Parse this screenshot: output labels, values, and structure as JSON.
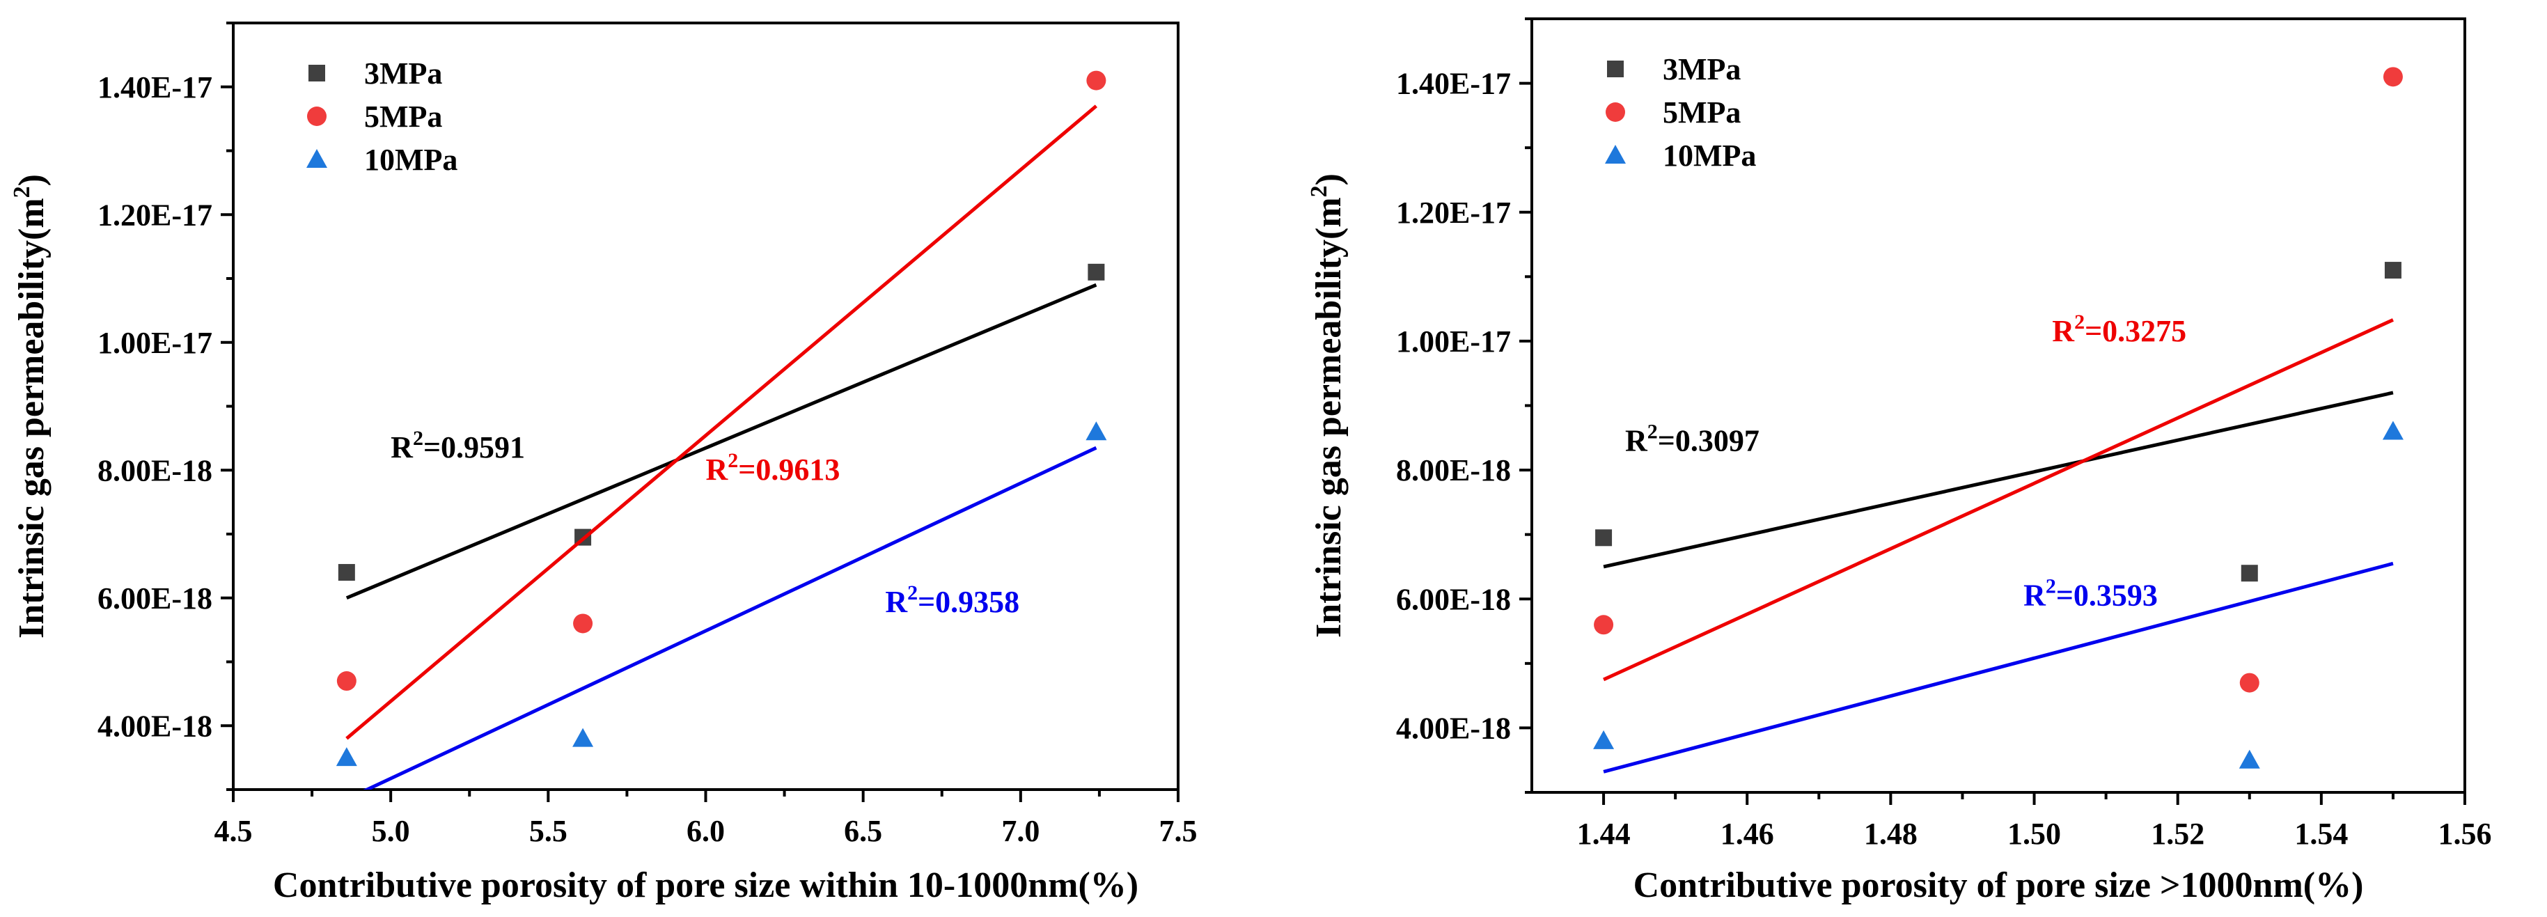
{
  "chart_data": [
    {
      "type": "scatter",
      "title": "",
      "xlabel": "Contributive porosity of pore size within 10-1000nm(%)",
      "ylabel_main": "Intrinsic gas permeability(m",
      "ylabel_sup": "2",
      "ylabel_end": ")",
      "xlim": [
        4.5,
        7.5
      ],
      "ylim": [
        3e-18,
        1.5e-17
      ],
      "x_ticks": [
        4.5,
        5.0,
        5.5,
        6.0,
        6.5,
        7.0,
        7.5
      ],
      "x_tick_labels": [
        "4.5",
        "5.0",
        "5.5",
        "6.0",
        "6.5",
        "7.0",
        "7.5"
      ],
      "y_ticks": [
        4e-18,
        6e-18,
        8e-18,
        1e-17,
        1.2e-17,
        1.4e-17
      ],
      "y_tick_labels": [
        "4.00E-18",
        "6.00E-18",
        "8.00E-18",
        "1.00E-17",
        "1.20E-17",
        "1.40E-17"
      ],
      "grid": false,
      "legend_position": "top-left",
      "series": [
        {
          "name": "3MPa",
          "marker": "square",
          "color": "#404040",
          "line_color": "#000000",
          "x": [
            4.86,
            5.61,
            7.24
          ],
          "y": [
            6.4e-18,
            6.95e-18,
            1.11e-17
          ],
          "fit": {
            "x": [
              4.86,
              7.24
            ],
            "y": [
              6e-18,
              1.09e-17
            ]
          },
          "r2_prefix": "R",
          "r2_sup": "2",
          "r2_value": "=0.9591",
          "r2_at": [
            5.0,
            8.2e-18
          ]
        },
        {
          "name": "5MPa",
          "marker": "circle",
          "color": "#f03c3c",
          "line_color": "#ee0000",
          "x": [
            4.86,
            5.61,
            7.24
          ],
          "y": [
            4.7e-18,
            5.6e-18,
            1.41e-17
          ],
          "fit": {
            "x": [
              4.86,
              7.24
            ],
            "y": [
              3.8e-18,
              1.37e-17
            ]
          },
          "r2_prefix": "R",
          "r2_sup": "2",
          "r2_value": "=0.9613",
          "r2_at": [
            6.0,
            7.85e-18
          ]
        },
        {
          "name": "10MPa",
          "marker": "triangle",
          "color": "#1e78dc",
          "line_color": "#0000ee",
          "x": [
            4.86,
            5.61,
            7.24
          ],
          "y": [
            3.5e-18,
            3.8e-18,
            8.6e-18
          ],
          "fit": {
            "x": [
              4.86,
              7.24
            ],
            "y": [
              2.85e-18,
              8.35e-18
            ]
          },
          "r2_prefix": "R",
          "r2_sup": "2",
          "r2_value": "=0.9358",
          "r2_at": [
            6.57,
            5.78e-18
          ]
        }
      ]
    },
    {
      "type": "scatter",
      "title": "",
      "xlabel": "Contributive porosity of pore size >1000nm(%)",
      "ylabel_main": "Intrinsic gas permeability(m",
      "ylabel_sup": "2",
      "ylabel_end": ")",
      "xlim": [
        1.43,
        1.56
      ],
      "ylim": [
        3e-18,
        1.5e-17
      ],
      "x_ticks": [
        1.44,
        1.46,
        1.48,
        1.5,
        1.52,
        1.54,
        1.56
      ],
      "x_tick_labels": [
        "1.44",
        "1.46",
        "1.48",
        "1.50",
        "1.52",
        "1.54",
        "1.56"
      ],
      "y_ticks": [
        4e-18,
        6e-18,
        8e-18,
        1e-17,
        1.2e-17,
        1.4e-17
      ],
      "y_tick_labels": [
        "4.00E-18",
        "6.00E-18",
        "8.00E-18",
        "1.00E-17",
        "1.20E-17",
        "1.40E-17"
      ],
      "grid": false,
      "legend_position": "top-left",
      "series": [
        {
          "name": "3MPa",
          "marker": "square",
          "color": "#404040",
          "line_color": "#000000",
          "x": [
            1.44,
            1.53,
            1.55
          ],
          "y": [
            6.95e-18,
            6.4e-18,
            1.11e-17
          ],
          "fit": {
            "x": [
              1.44,
              1.55
            ],
            "y": [
              6.5e-18,
              9.2e-18
            ]
          },
          "r2_prefix": "R",
          "r2_sup": "2",
          "r2_value": "=0.3097",
          "r2_at": [
            1.443,
            8.3e-18
          ]
        },
        {
          "name": "5MPa",
          "marker": "circle",
          "color": "#f03c3c",
          "line_color": "#ee0000",
          "x": [
            1.44,
            1.53,
            1.55
          ],
          "y": [
            5.6e-18,
            4.7e-18,
            1.41e-17
          ],
          "fit": {
            "x": [
              1.44,
              1.55
            ],
            "y": [
              4.75e-18,
              1.033e-17
            ]
          },
          "r2_prefix": "R",
          "r2_sup": "2",
          "r2_value": "=0.3275",
          "r2_at": [
            1.5025,
            1e-17
          ]
        },
        {
          "name": "10MPa",
          "marker": "triangle",
          "color": "#1e78dc",
          "line_color": "#0000ee",
          "x": [
            1.44,
            1.53,
            1.55
          ],
          "y": [
            3.8e-18,
            3.5e-18,
            8.6e-18
          ],
          "fit": {
            "x": [
              1.44,
              1.55
            ],
            "y": [
              3.32e-18,
              6.55e-18
            ]
          },
          "r2_prefix": "R",
          "r2_sup": "2",
          "r2_value": "=0.3593",
          "r2_at": [
            1.4985,
            5.9e-18
          ]
        }
      ]
    }
  ]
}
